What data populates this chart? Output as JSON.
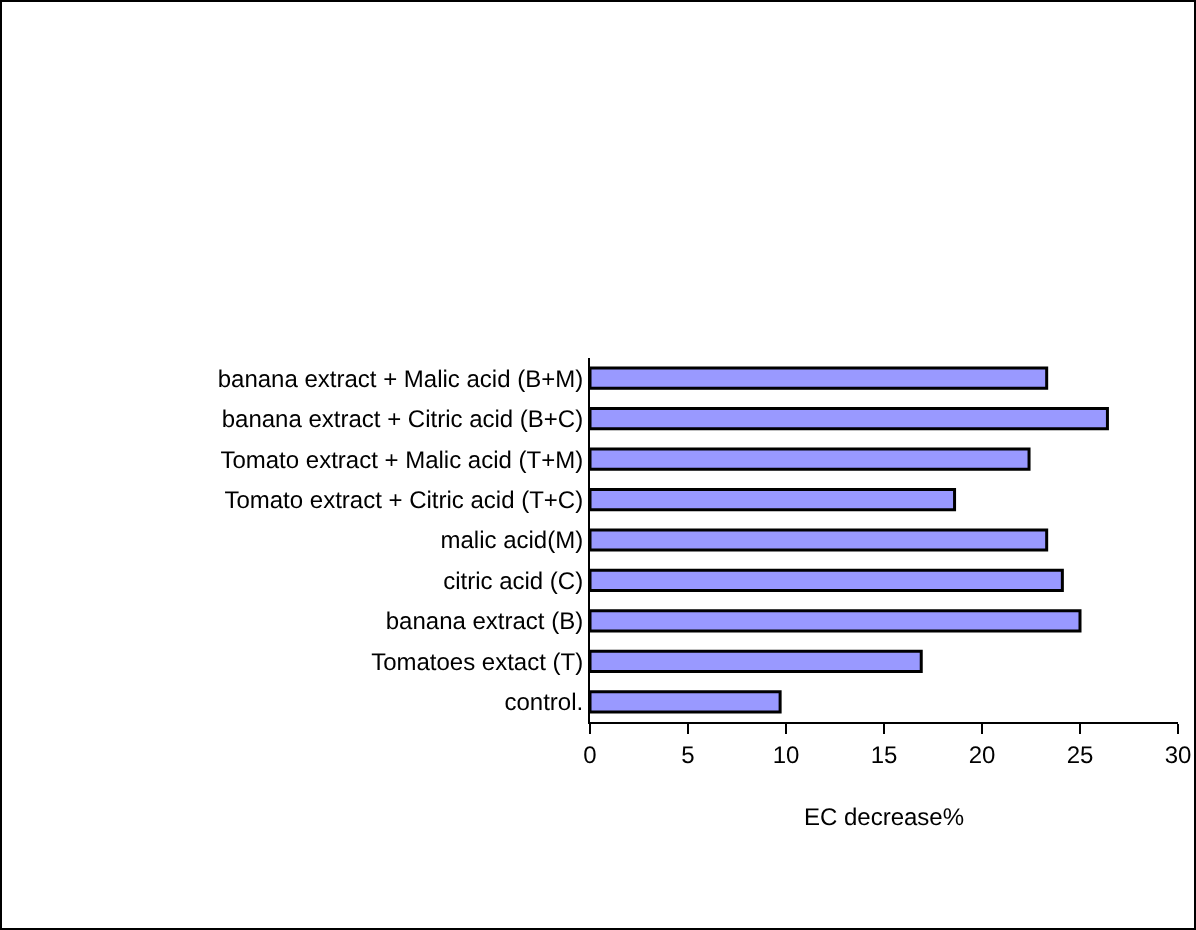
{
  "chart_data": {
    "type": "bar",
    "orientation": "horizontal",
    "xlabel": "EC decrease%",
    "categories": [
      "banana extract + Malic acid (B+M)",
      "banana extract + Citric acid (B+C)",
      "Tomato extract + Malic acid (T+M)",
      "Tomato extract + Citric acid (T+C)",
      "malic acid(M)",
      "citric acid (C)",
      "banana extract (B)",
      "Tomatoes extact (T)",
      "control."
    ],
    "values": [
      23.3,
      26.4,
      22.4,
      18.6,
      23.3,
      24.1,
      25.0,
      16.9,
      9.7
    ],
    "color": "#9999ff",
    "xlim": [
      0,
      30
    ],
    "xticks": [
      0,
      5,
      10,
      15,
      20,
      25,
      30
    ],
    "grid": false,
    "legend": false
  }
}
